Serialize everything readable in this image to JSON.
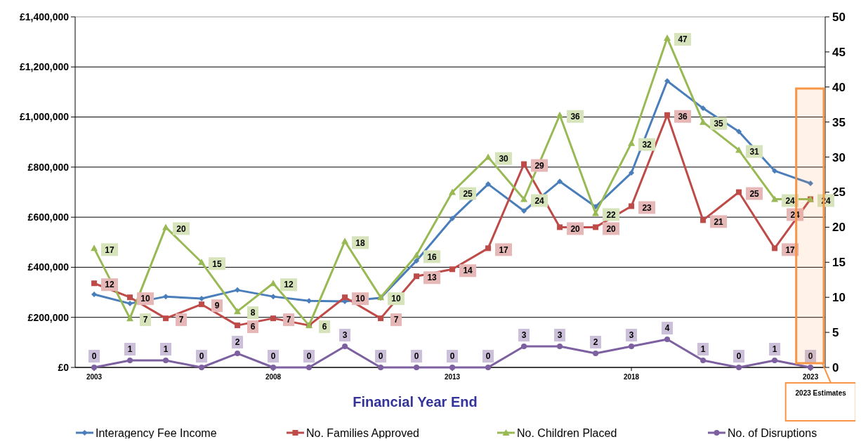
{
  "chart_data": {
    "type": "line",
    "xlabel": "Financial Year End",
    "x": [
      2003,
      2004,
      2005,
      2006,
      2007,
      2008,
      2009,
      2010,
      2011,
      2012,
      2013,
      2014,
      2015,
      2016,
      2017,
      2018,
      2019,
      2020,
      2021,
      2022,
      2023
    ],
    "xlim": [
      2002.47,
      2023.41
    ],
    "xticks": [
      2003,
      2008,
      2013,
      2018,
      2023
    ],
    "ylim": [
      0,
      1400000
    ],
    "yticks": [
      {
        "value": 0,
        "label": "£0"
      },
      {
        "value": 200000,
        "label": "£200,000"
      },
      {
        "value": 400000,
        "label": "£400,000"
      },
      {
        "value": 600000,
        "label": "£600,000"
      },
      {
        "value": 800000,
        "label": "£800,000"
      },
      {
        "value": 1000000,
        "label": "£1,000,000"
      },
      {
        "value": 1200000,
        "label": "£1,200,000"
      },
      {
        "value": 1400000,
        "label": "£1,400,000"
      }
    ],
    "y2lim": [
      0,
      50
    ],
    "y2ticks": [
      0,
      5,
      10,
      15,
      20,
      25,
      30,
      35,
      40,
      45,
      50
    ],
    "grid": "y",
    "legend": "bottom",
    "line_style": "solid",
    "series": [
      {
        "name": "Interagency Fee Income",
        "color": "#4a7ebb",
        "marker": "diamond",
        "values": [
          292000,
          255000,
          283000,
          275000,
          309000,
          283000,
          266000,
          264000,
          278000,
          426000,
          595000,
          732000,
          625000,
          743000,
          642000,
          777000,
          1144000,
          1035000,
          942000,
          785000,
          735000
        ]
      },
      {
        "name": "No. Families Approved",
        "color": "#be4b48",
        "marker": "square",
        "axis": "y2",
        "values": [
          12,
          10,
          7,
          9,
          6,
          7,
          6,
          10,
          7,
          13,
          14,
          17,
          29,
          20,
          20,
          23,
          36,
          21,
          25,
          17,
          24
        ],
        "value_labels": [
          "12",
          "10",
          "7",
          "9",
          "6",
          "7",
          null,
          "10",
          "7",
          "13",
          "14",
          "17",
          "29",
          "20",
          "20",
          "23",
          "36",
          "21",
          "25",
          "17",
          "24"
        ]
      },
      {
        "name": "No. Children Placed",
        "color": "#98b954",
        "marker": "triangle",
        "axis": "y2",
        "data_labels": true,
        "values": [
          17,
          7,
          20,
          15,
          8,
          12,
          6,
          18,
          10,
          16,
          25,
          30,
          24,
          36,
          22,
          32,
          47,
          35,
          31,
          24,
          24
        ]
      },
      {
        "name": "No. of Disruptions",
        "color": "#7d60a0",
        "marker": "circle",
        "axis": "y2",
        "data_labels": true,
        "values": [
          0,
          1,
          1,
          0,
          2,
          0,
          0,
          3,
          0,
          0,
          0,
          0,
          3,
          3,
          2,
          3,
          4,
          1,
          0,
          1,
          0
        ]
      }
    ],
    "bands": [
      {
        "axis": "x",
        "from": 2022.6,
        "to": 2023.37,
        "label": "2023 Estimates",
        "color": "#f79646"
      }
    ]
  }
}
